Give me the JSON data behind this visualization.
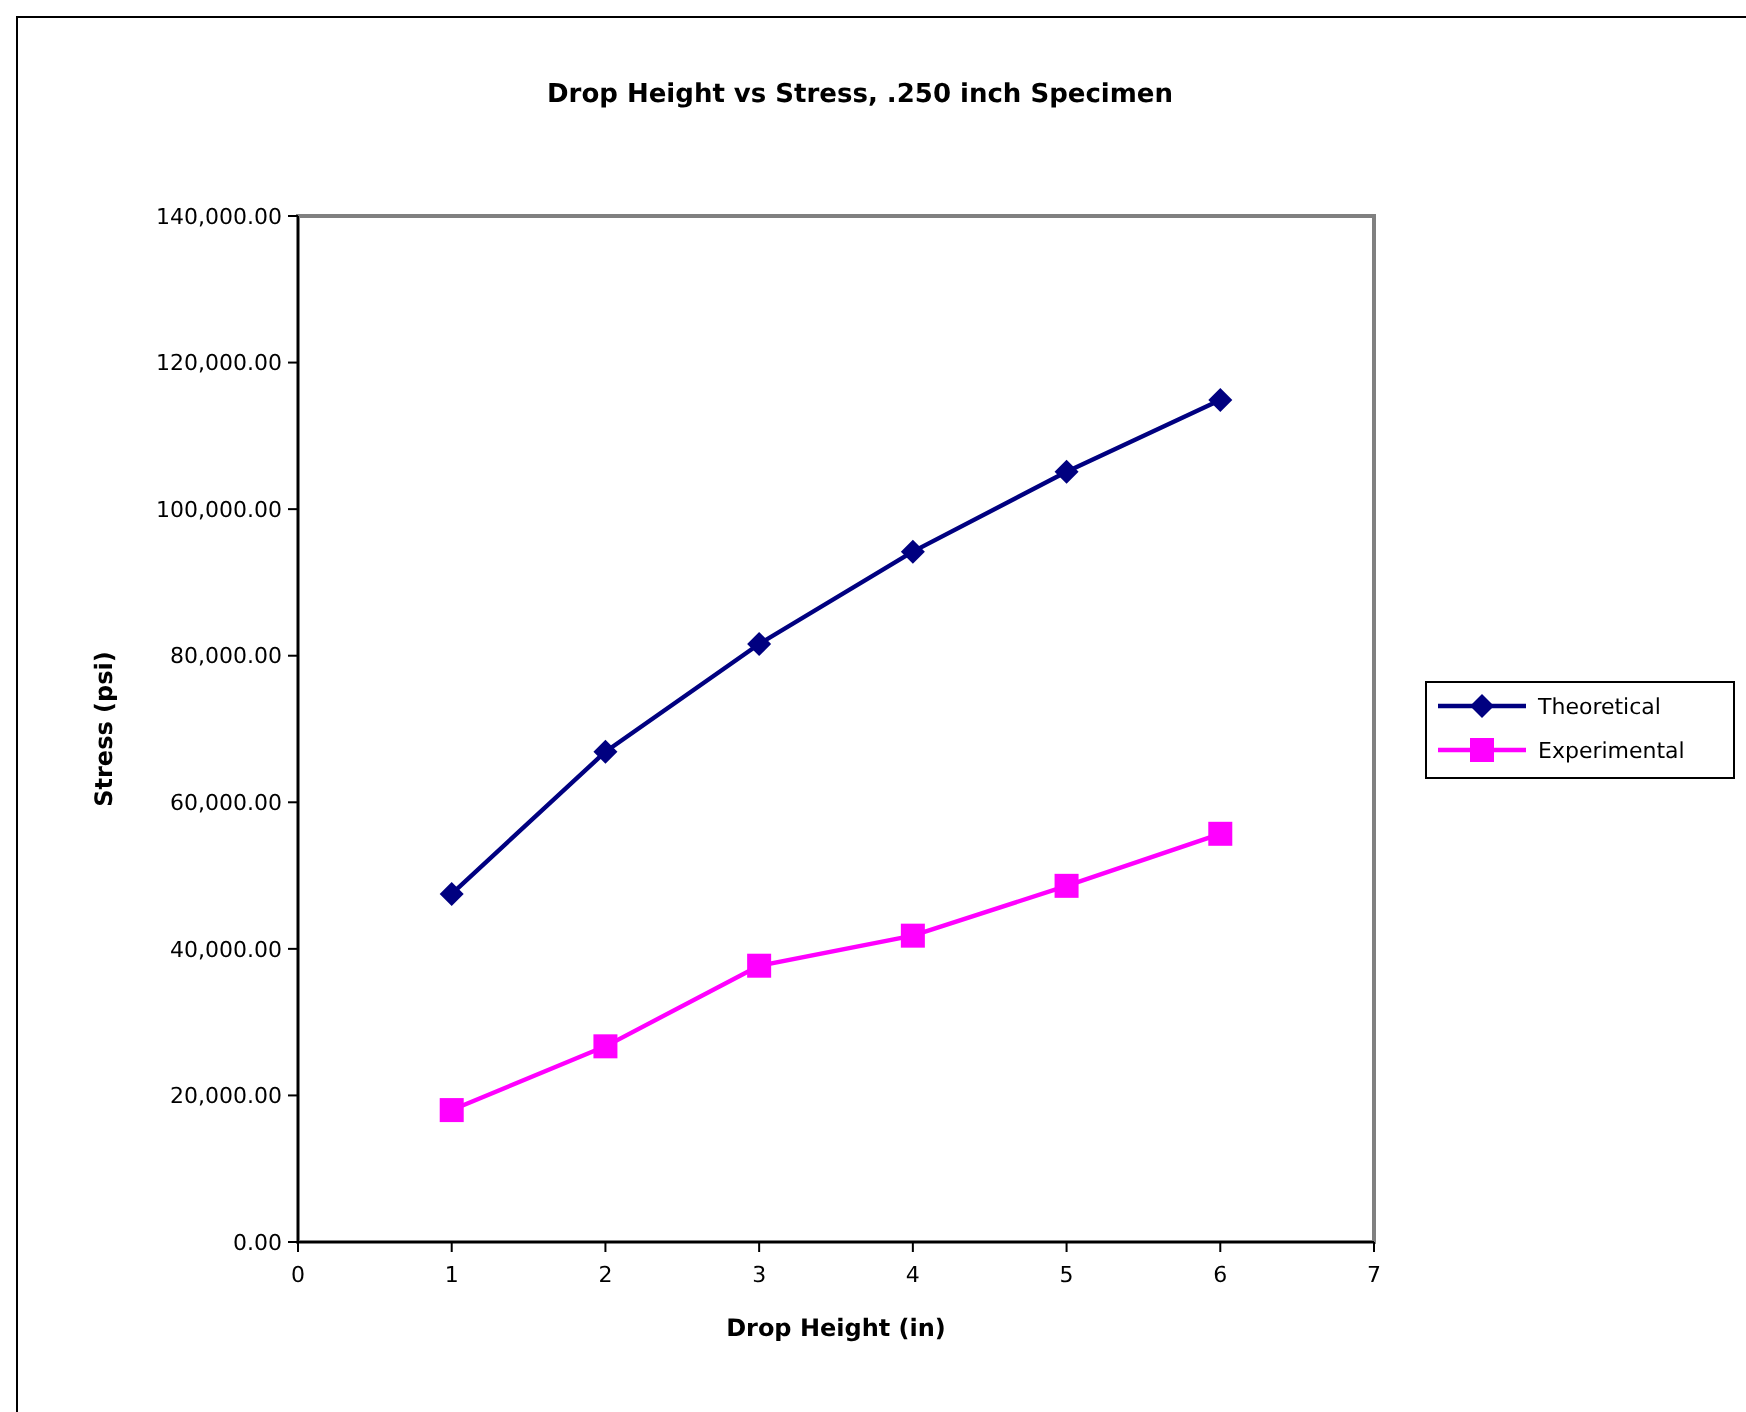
{
  "chart_data": {
    "type": "line",
    "title": "Drop Height vs Stress, .250 inch Specimen",
    "xlabel": "Drop Height (in)",
    "ylabel": "Stress (psi)",
    "x": [
      1,
      2,
      3,
      4,
      5,
      6
    ],
    "series": [
      {
        "name": "Theoretical",
        "color": "#000080",
        "marker": "diamond",
        "values": [
          47500,
          66900,
          81600,
          94200,
          105100,
          114900
        ]
      },
      {
        "name": "Experimental",
        "color": "#ff00ff",
        "marker": "square",
        "values": [
          18000,
          26700,
          37700,
          41800,
          48600,
          55700
        ]
      }
    ],
    "xlim": [
      0,
      7
    ],
    "xticks": [
      0,
      1,
      2,
      3,
      4,
      5,
      6,
      7
    ],
    "ylim": [
      0,
      140000
    ],
    "yticks": [
      {
        "value": 0,
        "label": "0.00"
      },
      {
        "value": 20000,
        "label": "20,000.00"
      },
      {
        "value": 40000,
        "label": "40,000.00"
      },
      {
        "value": 60000,
        "label": "60,000.00"
      },
      {
        "value": 80000,
        "label": "80,000.00"
      },
      {
        "value": 100000,
        "label": "100,000.00"
      },
      {
        "value": 120000,
        "label": "120,000.00"
      },
      {
        "value": 140000,
        "label": "140,000.00"
      }
    ],
    "grid": false,
    "legend": "right",
    "line_style": "solid"
  }
}
